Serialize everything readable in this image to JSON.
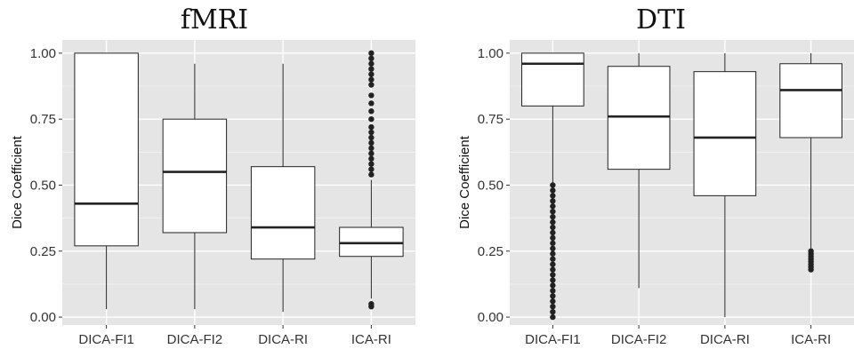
{
  "chart_data": [
    {
      "type": "box",
      "title": "fMRI",
      "xlabel": "",
      "ylabel": "Dice Coefficient",
      "ylim": [
        -0.03,
        1.05
      ],
      "yticks": [
        0.0,
        0.25,
        0.5,
        0.75,
        1.0
      ],
      "ytick_labels": [
        "0.00",
        "0.25",
        "0.50",
        "0.75",
        "1.00"
      ],
      "grid": true,
      "background": "#e5e5e5",
      "categories": [
        "DICA-FI1",
        "DICA-FI2",
        "DICA-RI",
        "ICA-RI"
      ],
      "boxes": [
        {
          "name": "DICA-FI1",
          "min": 0.03,
          "q1": 0.27,
          "median": 0.43,
          "q3": 1.0,
          "max": 1.0,
          "outliers": []
        },
        {
          "name": "DICA-FI2",
          "min": 0.03,
          "q1": 0.32,
          "median": 0.55,
          "q3": 0.75,
          "max": 0.96,
          "outliers": []
        },
        {
          "name": "DICA-RI",
          "min": 0.02,
          "q1": 0.22,
          "median": 0.34,
          "q3": 0.57,
          "max": 0.96,
          "outliers": []
        },
        {
          "name": "ICA-RI",
          "min": 0.07,
          "q1": 0.23,
          "median": 0.28,
          "q3": 0.34,
          "max": 0.52,
          "outliers": [
            0.04,
            0.05,
            0.54,
            0.56,
            0.58,
            0.6,
            0.62,
            0.64,
            0.66,
            0.68,
            0.7,
            0.72,
            0.75,
            0.78,
            0.81,
            0.84,
            0.88,
            0.9,
            0.92,
            0.94,
            0.96,
            0.98,
            1.0
          ]
        }
      ]
    },
    {
      "type": "box",
      "title": "DTI",
      "xlabel": "",
      "ylabel": "Dice Coefficient",
      "ylim": [
        -0.03,
        1.05
      ],
      "yticks": [
        0.0,
        0.25,
        0.5,
        0.75,
        1.0
      ],
      "ytick_labels": [
        "0.00",
        "0.25",
        "0.50",
        "0.75",
        "1.00"
      ],
      "grid": true,
      "background": "#e5e5e5",
      "categories": [
        "DICA-FI1",
        "DICA-FI2",
        "DICA-RI",
        "ICA-RI"
      ],
      "boxes": [
        {
          "name": "DICA-FI1",
          "min": 0.51,
          "q1": 0.8,
          "median": 0.96,
          "q3": 1.0,
          "max": 1.0,
          "outliers": [
            0.0,
            0.02,
            0.04,
            0.06,
            0.08,
            0.1,
            0.12,
            0.14,
            0.16,
            0.18,
            0.2,
            0.22,
            0.24,
            0.26,
            0.28,
            0.3,
            0.32,
            0.34,
            0.36,
            0.38,
            0.4,
            0.42,
            0.44,
            0.46,
            0.48,
            0.5
          ]
        },
        {
          "name": "DICA-FI2",
          "min": 0.11,
          "q1": 0.56,
          "median": 0.76,
          "q3": 0.95,
          "max": 1.0,
          "outliers": []
        },
        {
          "name": "DICA-RI",
          "min": 0.0,
          "q1": 0.46,
          "median": 0.68,
          "q3": 0.93,
          "max": 1.0,
          "outliers": []
        },
        {
          "name": "ICA-RI",
          "min": 0.26,
          "q1": 0.68,
          "median": 0.86,
          "q3": 0.96,
          "max": 1.0,
          "outliers": [
            0.18,
            0.19,
            0.2,
            0.21,
            0.22,
            0.23,
            0.24,
            0.25
          ]
        }
      ]
    }
  ]
}
